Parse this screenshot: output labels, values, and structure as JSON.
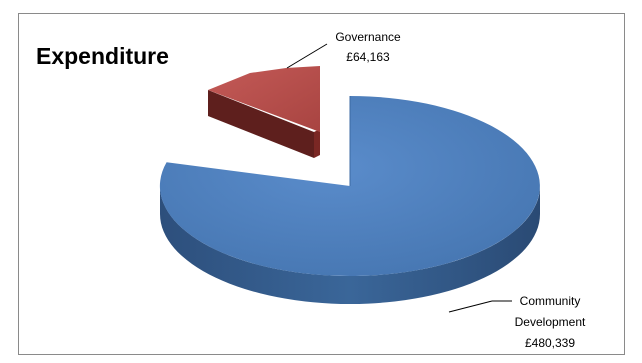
{
  "chart_data": {
    "type": "pie",
    "title": "Expenditure",
    "slices": [
      {
        "label": "Community Development",
        "value_text": "£480,339",
        "value": 480339,
        "color": "#4f81bd",
        "exploded": false
      },
      {
        "label": "Governance",
        "value_text": "£64,163",
        "value": 64163,
        "color": "#c0504d",
        "exploded": true
      }
    ],
    "style": "3d"
  },
  "labels": {
    "governance_name": "Governance",
    "governance_value": "£64,163",
    "community_line1": "Community",
    "community_line2": "Development",
    "community_value": "£480,339"
  }
}
